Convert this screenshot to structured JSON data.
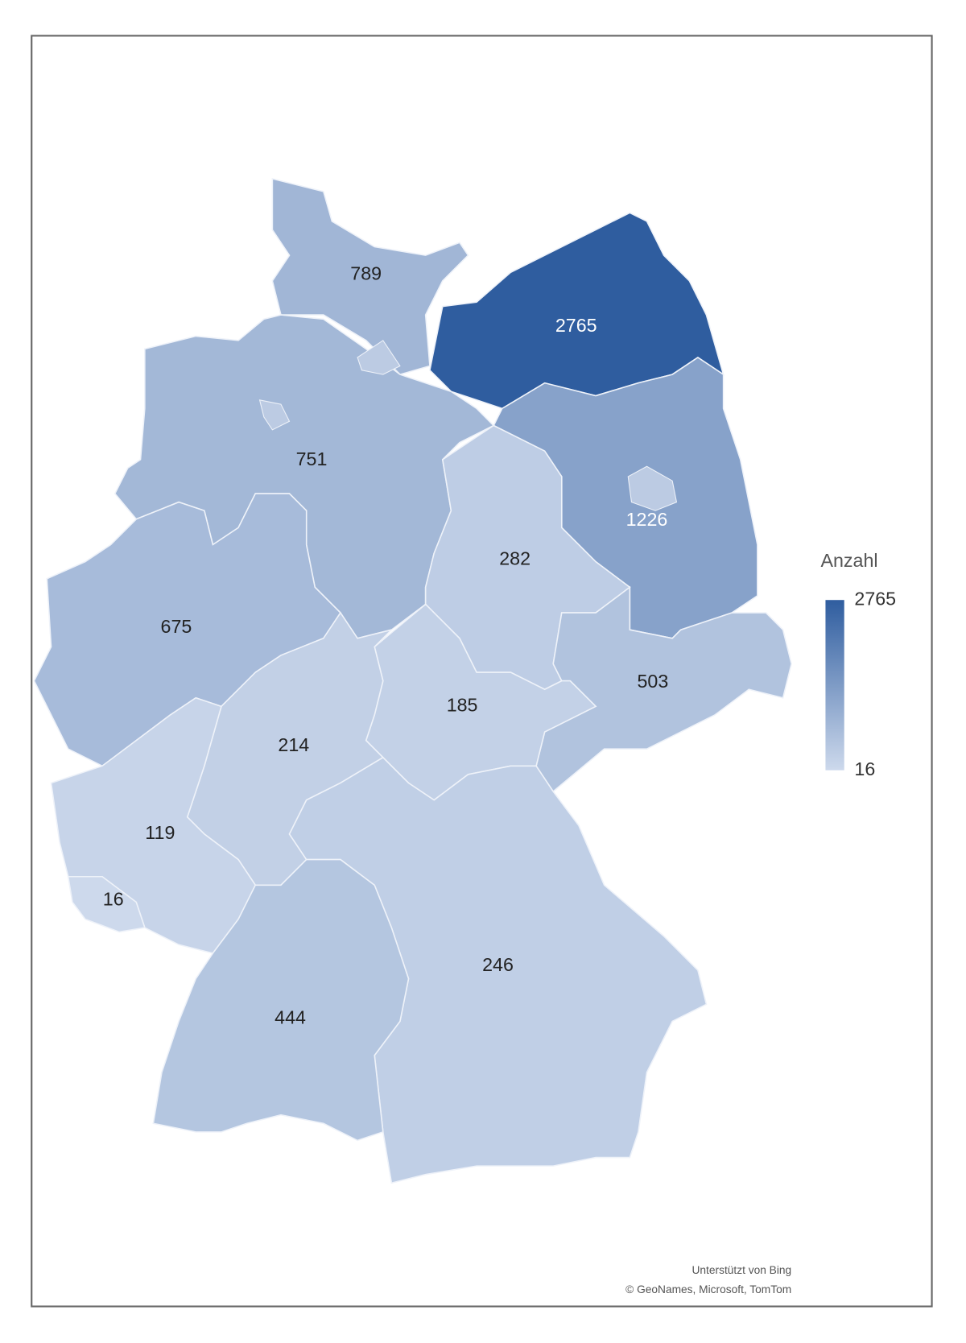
{
  "chart_data": {
    "type": "choropleth",
    "values": [
      789,
      2765,
      751,
      1226,
      282,
      675,
      503,
      185,
      214,
      119,
      16,
      246,
      444
    ],
    "legend_title": "Anzahl",
    "colorlim": [
      16,
      2765
    ],
    "colorticks": [
      16,
      2765
    ],
    "colors": [
      "#cdd9ec",
      "#2f5d9f"
    ],
    "credits": [
      "Unterstützt von Bing",
      "© GeoNames, Microsoft, TomTom"
    ]
  }
}
